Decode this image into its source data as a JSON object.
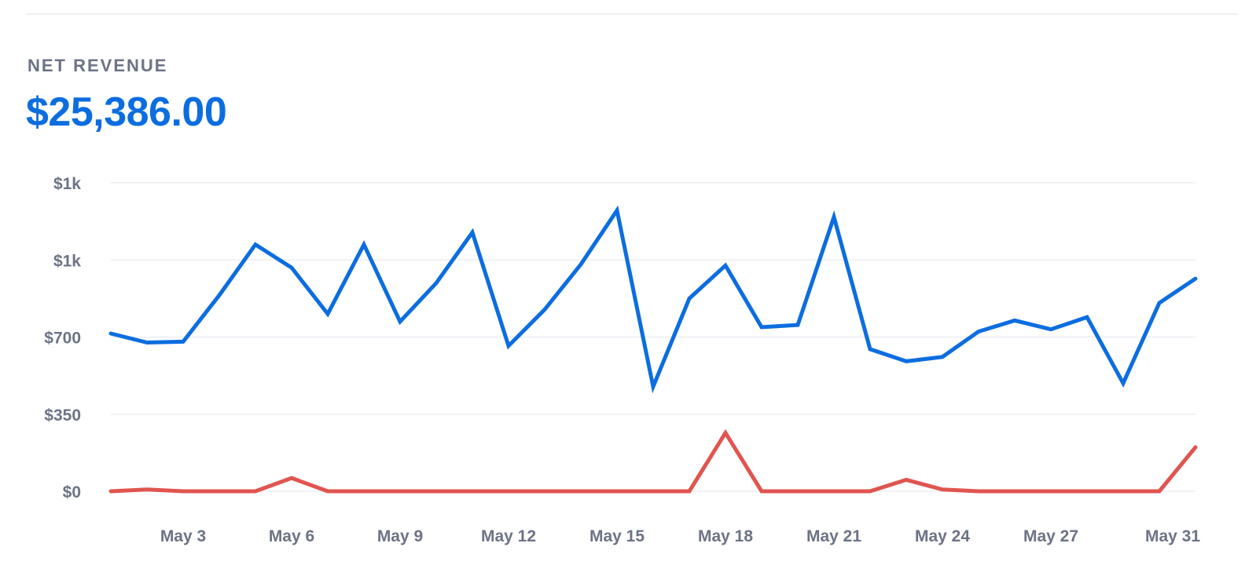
{
  "metric": {
    "label": "NET REVENUE",
    "value": "$25,386.00"
  },
  "colors": {
    "accent": "#0c6de0",
    "series_gross": "#0c6de0",
    "series_refunds": "#e0554f",
    "grid": "#eceef2",
    "axis_text": "#6b7385"
  },
  "chart_data": {
    "type": "line",
    "x": [
      "May 1",
      "May 2",
      "May 3",
      "May 4",
      "May 5",
      "May 6",
      "May 7",
      "May 8",
      "May 9",
      "May 10",
      "May 11",
      "May 12",
      "May 13",
      "May 14",
      "May 15",
      "May 16",
      "May 17",
      "May 18",
      "May 19",
      "May 20",
      "May 21",
      "May 22",
      "May 23",
      "May 24",
      "May 25",
      "May 26",
      "May 27",
      "May 28",
      "May 29",
      "May 30",
      "May 31"
    ],
    "x_tick_labels": [
      "May 3",
      "May 6",
      "May 9",
      "May 12",
      "May 15",
      "May 18",
      "May 21",
      "May 24",
      "May 27",
      "May 31"
    ],
    "y_tick_labels": [
      "$0",
      "$350",
      "$700",
      "$1k",
      "$1k"
    ],
    "y_ticks": [
      0,
      350,
      700,
      1050,
      1400
    ],
    "ylim": [
      0,
      1400
    ],
    "grid": true,
    "series": [
      {
        "values": [
          716,
          675,
          679,
          890,
          1120,
          1015,
          805,
          1120,
          770,
          945,
          1175,
          660,
          825,
          1030,
          1275,
          475,
          875,
          1025,
          745,
          755,
          1245,
          645,
          590,
          610,
          725,
          775,
          735,
          790,
          490,
          855,
          965
        ]
      },
      {
        "values": [
          0,
          8,
          0,
          0,
          0,
          60,
          0,
          0,
          0,
          0,
          0,
          0,
          0,
          0,
          0,
          0,
          0,
          265,
          0,
          0,
          0,
          0,
          52,
          8,
          0,
          0,
          0,
          0,
          0,
          0,
          200
        ]
      }
    ]
  }
}
